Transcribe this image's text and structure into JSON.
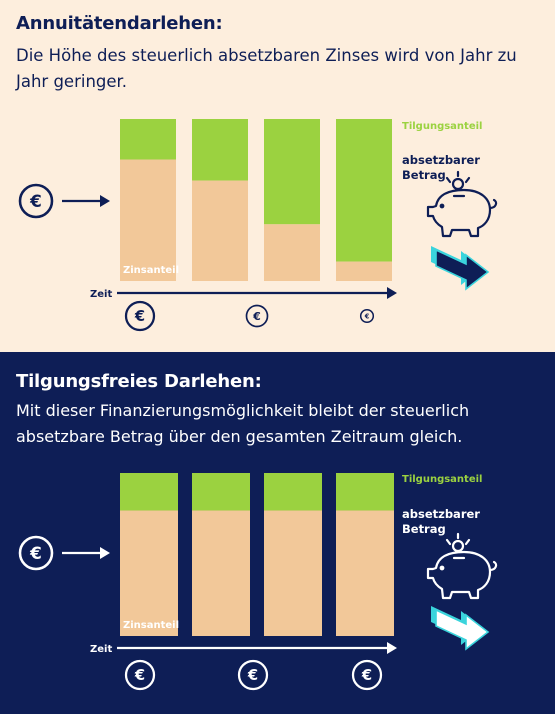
{
  "colors": {
    "navy": "#0e1e56",
    "cream": "#fdeedd",
    "zins": "#f2c899",
    "tilgung": "#9bd240",
    "arrow_cyan": "#3ad4dc",
    "white": "#ffffff"
  },
  "icons": [
    "euro-coin-icon",
    "arrow-right-icon",
    "piggy-bank-icon",
    "trend-arrow-icon"
  ],
  "chart_data": [
    {
      "type": "bar",
      "stacked": true,
      "title": "Annuitätendarlehen:",
      "subtitle": "Die Höhe des steuerlich absetzbaren Zinses wird von Jahr zu Jahr geringer.",
      "xlabel": "Zeit",
      "series": [
        {
          "name": "Zinsanteil",
          "values": [
            0.75,
            0.62,
            0.35,
            0.12
          ]
        },
        {
          "name": "Tilgungsanteil",
          "values": [
            0.25,
            0.38,
            0.65,
            0.88
          ]
        }
      ],
      "coin_sizes": [
        1.0,
        0.75,
        0.45
      ],
      "annotation": [
        "absetzbarer",
        "Betrag"
      ]
    },
    {
      "type": "bar",
      "stacked": true,
      "title": "Tilgungsfreies Darlehen:",
      "subtitle": "Mit dieser Finanzierungsmöglichkeit bleibt der steuerlich absetzbare Betrag über den gesamten Zeitraum gleich.",
      "xlabel": "Zeit",
      "series": [
        {
          "name": "Zinsanteil",
          "values": [
            0.77,
            0.77,
            0.77,
            0.77
          ]
        },
        {
          "name": "Tilgungsanteil",
          "values": [
            0.23,
            0.23,
            0.23,
            0.23
          ]
        }
      ],
      "coin_sizes": [
        1.0,
        1.0,
        1.0
      ],
      "annotation": [
        "absetzbarer",
        "Betrag"
      ]
    }
  ]
}
